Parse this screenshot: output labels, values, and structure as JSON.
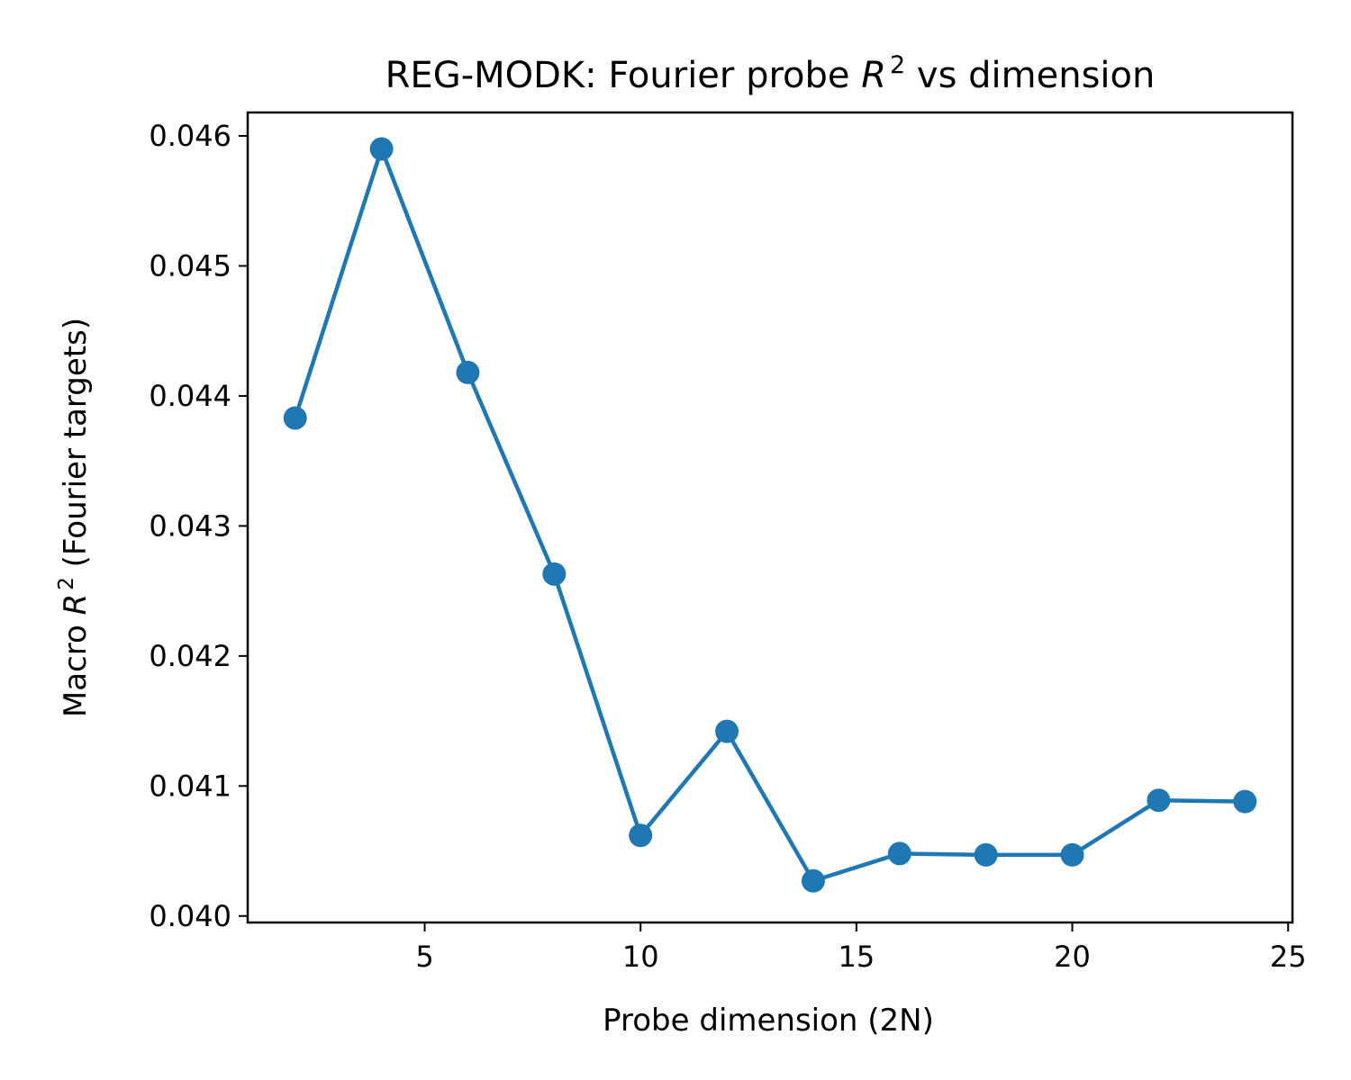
{
  "chart_data": {
    "type": "line",
    "title": "REG-MODK: Fourier probe R² vs dimension",
    "title_parts": {
      "prefix": "REG-MODK: Fourier probe ",
      "var": "R",
      "sup": "2",
      "suffix": " vs dimension"
    },
    "xlabel": "Probe dimension (2N)",
    "ylabel": "Macro R² (Fourier targets)",
    "ylabel_parts": {
      "prefix": "Macro ",
      "var": "R",
      "sup": "2",
      "suffix": " (Fourier targets)"
    },
    "xlim": [
      0.9,
      25.1
    ],
    "ylim": [
      0.03995,
      0.04618
    ],
    "xticks": [
      5,
      10,
      15,
      20,
      25
    ],
    "xtick_labels": [
      "5",
      "10",
      "15",
      "20",
      "25"
    ],
    "yticks": [
      0.04,
      0.041,
      0.042,
      0.043,
      0.044,
      0.045,
      0.046
    ],
    "ytick_labels": [
      "0.040",
      "0.041",
      "0.042",
      "0.043",
      "0.044",
      "0.045",
      "0.046"
    ],
    "grid": false,
    "color": "#1f77b4",
    "series": [
      {
        "x": [
          2,
          4,
          6,
          8,
          10,
          12,
          14,
          16,
          18,
          20,
          22,
          24
        ],
        "y": [
          0.04383,
          0.0459,
          0.04418,
          0.04263,
          0.04062,
          0.04142,
          0.04027,
          0.04048,
          0.04047,
          0.04047,
          0.04089,
          0.04088
        ]
      }
    ]
  }
}
